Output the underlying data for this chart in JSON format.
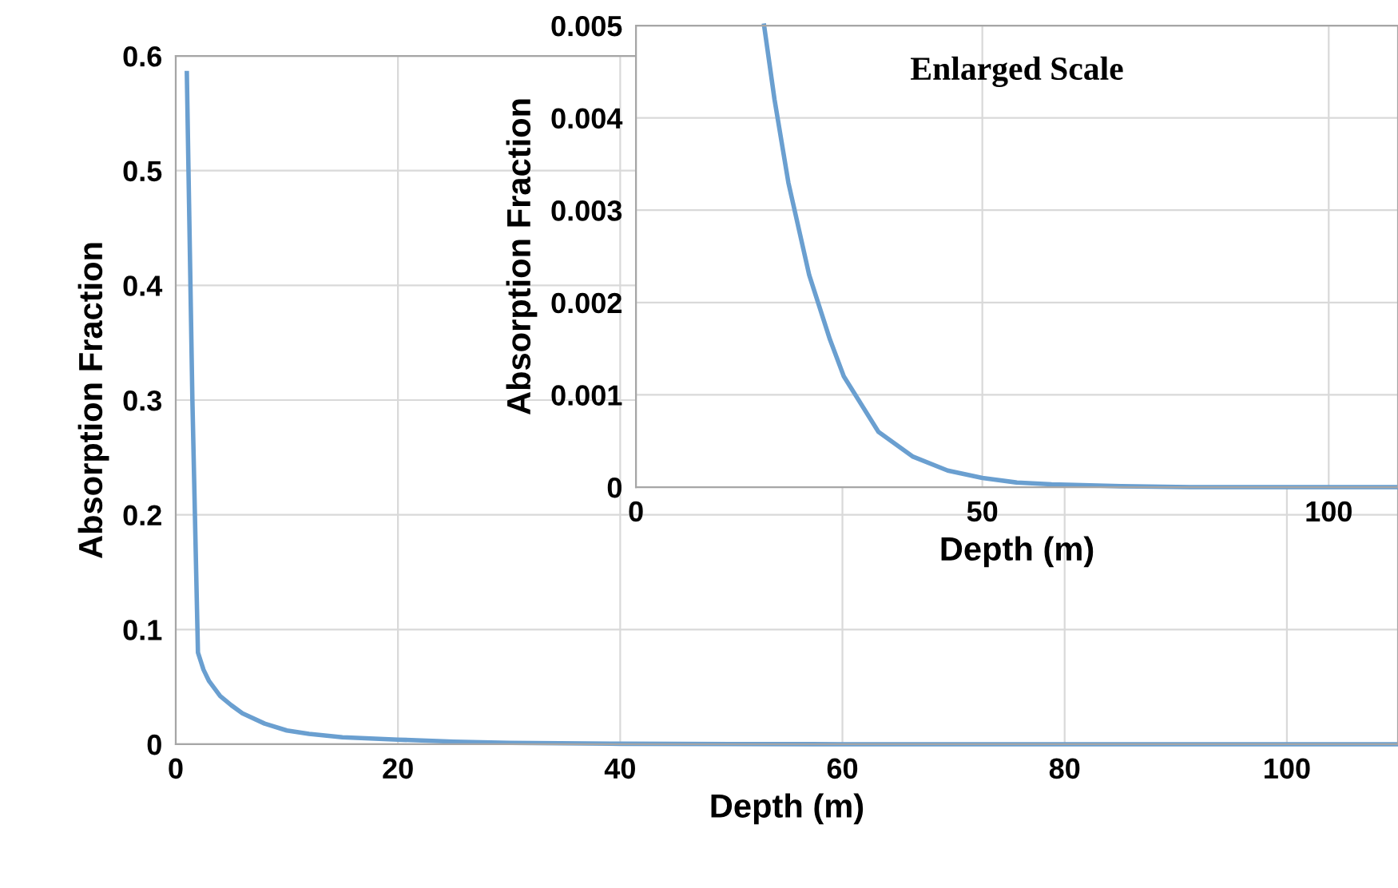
{
  "chart_data": [
    {
      "type": "line",
      "xlabel": "Depth (m)",
      "ylabel": "Absorption Fraction",
      "xlim": [
        0,
        110
      ],
      "ylim": [
        0,
        0.6
      ],
      "xticks": [
        0,
        20,
        40,
        60,
        80,
        100
      ],
      "yticks": [
        0,
        0.1,
        0.2,
        0.3,
        0.4,
        0.5,
        0.6
      ],
      "grid": true,
      "marker": "none",
      "line_style": "solid",
      "series": [
        {
          "color": "#6a9fd0",
          "x": [
            1,
            1.5,
            2,
            2.5,
            3,
            4,
            5,
            6,
            8,
            10,
            12,
            15,
            20,
            25,
            30,
            40,
            50,
            60,
            80,
            110
          ],
          "values": [
            0.585,
            0.3,
            0.08,
            0.065,
            0.055,
            0.042,
            0.034,
            0.027,
            0.018,
            0.012,
            0.009,
            0.006,
            0.004,
            0.0023,
            0.0012,
            0.0004,
            0.0001,
            3e-05,
            0,
            0
          ]
        }
      ]
    },
    {
      "type": "line",
      "xlabel": "Depth (m)",
      "ylabel": "Absorption Fraction",
      "xlim": [
        0,
        110
      ],
      "ylim": [
        0,
        0.005
      ],
      "xticks": [
        0,
        50,
        100
      ],
      "yticks": [
        0,
        0.001,
        0.002,
        0.003,
        0.004,
        0.005
      ],
      "grid": true,
      "marker": "none",
      "line_style": "solid",
      "annotations": [
        "Enlarged Scale"
      ],
      "series": [
        {
          "color": "#6a9fd0",
          "x": [
            18.5,
            20,
            22,
            25,
            28,
            30,
            35,
            40,
            45,
            50,
            55,
            60,
            70,
            80,
            110
          ],
          "values": [
            0.005,
            0.0042,
            0.0033,
            0.0023,
            0.0016,
            0.0012,
            0.0006,
            0.00033,
            0.00018,
            0.0001,
            5e-05,
            3e-05,
            1e-05,
            0,
            0
          ]
        }
      ]
    }
  ]
}
